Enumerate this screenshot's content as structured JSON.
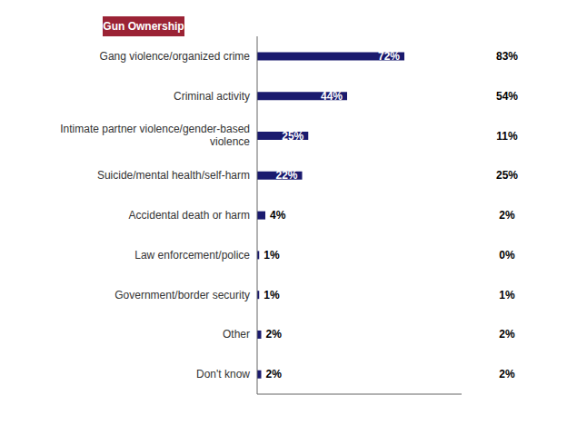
{
  "chart_data": {
    "type": "bar",
    "orientation": "horizontal",
    "categories": [
      "Gang violence/organized crime",
      "Criminal activity",
      "Intimate partner violence/gender-based\nviolence",
      "Suicide/mental health/self-harm",
      "Accidental death or harm",
      "Law enforcement/police",
      "Government/border security",
      "Other",
      "Don't know"
    ],
    "series": [
      {
        "values": [
          72,
          44,
          25,
          22,
          4,
          1,
          1,
          2,
          2
        ],
        "value_labels": [
          "72%",
          "44%",
          "25%",
          "22%",
          "4%",
          "1%",
          "1%",
          "2%",
          "2%"
        ],
        "color": "#1a1a6e"
      },
      {
        "name": "Gun Ownership",
        "type": "column",
        "values": [
          83,
          54,
          11,
          25,
          2,
          0,
          1,
          2,
          2
        ],
        "value_labels": [
          "83%",
          "54%",
          "11%",
          "25%",
          "2%",
          "0%",
          "1%",
          "2%",
          "2%"
        ],
        "color": "#9b2335"
      }
    ],
    "xlim": [
      0,
      100
    ],
    "data_labels": true,
    "tick_labels": "y",
    "legend": "upper right",
    "grid": false
  }
}
